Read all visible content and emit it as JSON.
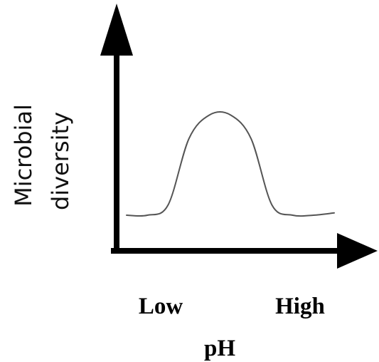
{
  "chart_data": {
    "type": "line",
    "title": "",
    "ylabel_lines": [
      "Microbial",
      "diversity"
    ],
    "xlabel": "pH",
    "x_tick_labels": [
      "Low",
      "High"
    ],
    "ylim": [
      0,
      1
    ],
    "xlim": [
      0,
      1
    ],
    "grid": false,
    "legend": "none",
    "series": [
      {
        "values": [
          {
            "x": 0.0,
            "y": 0.05
          },
          {
            "x": 0.1,
            "y": 0.05
          },
          {
            "x": 0.2,
            "y": 0.14
          },
          {
            "x": 0.3,
            "y": 0.72
          },
          {
            "x": 0.4,
            "y": 0.93
          },
          {
            "x": 0.5,
            "y": 0.93
          },
          {
            "x": 0.6,
            "y": 0.72
          },
          {
            "x": 0.7,
            "y": 0.14
          },
          {
            "x": 0.8,
            "y": 0.05
          },
          {
            "x": 0.9,
            "y": 0.05
          },
          {
            "x": 1.0,
            "y": 0.07
          }
        ]
      }
    ],
    "colors": {
      "axis": "#000000",
      "line": "#555555",
      "text": "#111111"
    }
  }
}
